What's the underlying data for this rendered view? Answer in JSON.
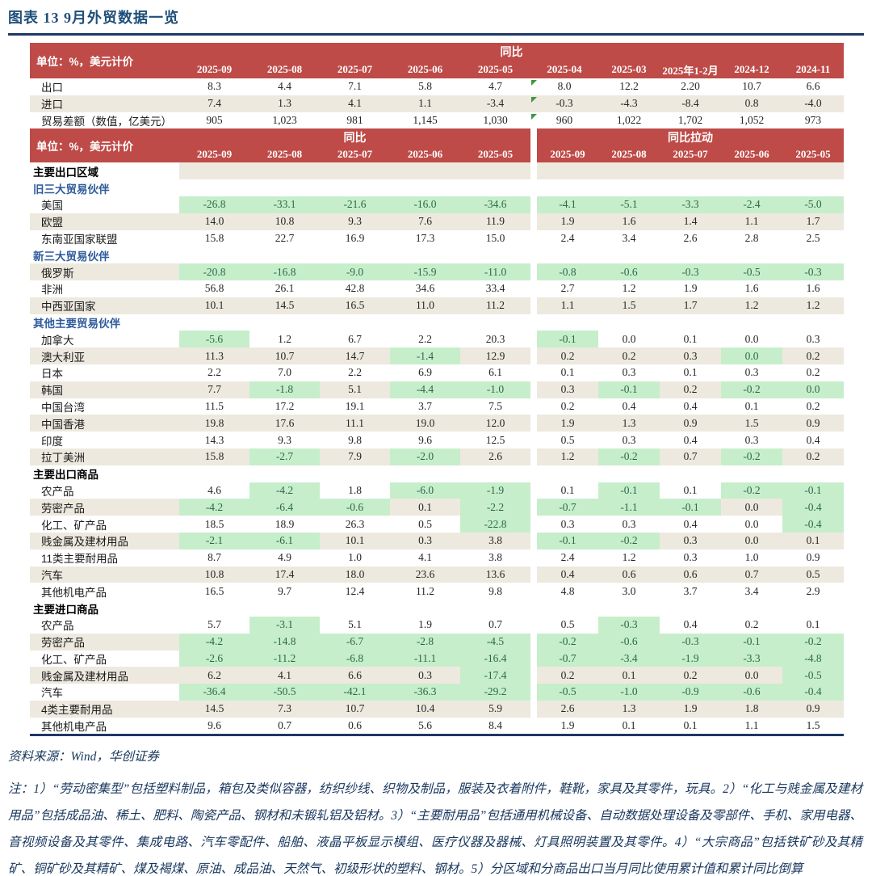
{
  "title": "图表 13  9月外贸数据一览",
  "colors": {
    "header_red": "#BE4B48",
    "stripe_beige": "#EDE9DF",
    "highlight_green_bg": "#C7EECB",
    "highlight_green_text": "#2B6A46",
    "section_blue": "#2E5B9C",
    "title_blue": "#1F4E79",
    "rule_navy": "#1F3864",
    "note_blue": "#17365D",
    "comment_marker_green": "#3F9643"
  },
  "table1": {
    "unit_label": "单位：%，美元计价",
    "group_label": "同比",
    "columns": [
      "2025-09",
      "2025-08",
      "2025-07",
      "2025-06",
      "2025-05",
      "2025-04",
      "2025-03",
      "2025年1-2月",
      "2024-12",
      "2024-11"
    ],
    "rows": [
      {
        "label": "出口",
        "stripe": false,
        "marker_col": 5,
        "values": [
          "8.3",
          "4.4",
          "7.1",
          "5.8",
          "4.7",
          "8.0",
          "12.2",
          "2.20",
          "10.7",
          "6.6"
        ]
      },
      {
        "label": "进口",
        "stripe": true,
        "marker_col": 5,
        "values": [
          "7.4",
          "1.3",
          "4.1",
          "1.1",
          "-3.4",
          "-0.3",
          "-4.3",
          "-8.4",
          "0.8",
          "-4.0"
        ]
      },
      {
        "label": "贸易差额（数值，亿美元）",
        "stripe": false,
        "marker_col": 5,
        "values": [
          "905",
          "1,023",
          "981",
          "1,145",
          "1,030",
          "960",
          "1,022",
          "1,702",
          "1,052",
          "973"
        ]
      }
    ]
  },
  "table2": {
    "unit_label": "单位：%，美元计价",
    "group_labels": [
      "同比",
      "同比拉动"
    ],
    "columns": [
      "2025-09",
      "2025-08",
      "2025-07",
      "2025-06",
      "2025-05",
      "2025-09",
      "2025-08",
      "2025-07",
      "2025-06",
      "2025-05"
    ],
    "rows": [
      {
        "label": "主要出口区域",
        "type": "section-black",
        "stripe": true
      },
      {
        "label": "旧三大贸易伙伴",
        "type": "section-blue",
        "stripe": false
      },
      {
        "label": "美国",
        "type": "item",
        "stripe": false,
        "values": [
          "-26.8",
          "-33.1",
          "-21.6",
          "-16.0",
          "-34.6",
          "-4.1",
          "-5.1",
          "-3.3",
          "-2.4",
          "-5.0"
        ]
      },
      {
        "label": "欧盟",
        "type": "item",
        "stripe": true,
        "values": [
          "14.0",
          "10.8",
          "9.3",
          "7.6",
          "11.9",
          "1.9",
          "1.6",
          "1.4",
          "1.1",
          "1.7"
        ]
      },
      {
        "label": "东南亚国家联盟",
        "type": "item",
        "stripe": false,
        "values": [
          "15.8",
          "22.7",
          "16.9",
          "17.3",
          "15.0",
          "2.4",
          "3.4",
          "2.6",
          "2.8",
          "2.5"
        ]
      },
      {
        "label": "新三大贸易伙伴",
        "type": "section-blue",
        "stripe": false
      },
      {
        "label": "俄罗斯",
        "type": "item",
        "stripe": true,
        "values": [
          "-20.8",
          "-16.8",
          "-9.0",
          "-15.9",
          "-11.0",
          "-0.8",
          "-0.6",
          "-0.3",
          "-0.5",
          "-0.3"
        ]
      },
      {
        "label": "非洲",
        "type": "item",
        "stripe": false,
        "values": [
          "56.8",
          "26.1",
          "42.8",
          "34.6",
          "33.4",
          "2.7",
          "1.2",
          "1.9",
          "1.6",
          "1.6"
        ]
      },
      {
        "label": "中西亚国家",
        "type": "item",
        "stripe": true,
        "values": [
          "10.1",
          "14.5",
          "16.5",
          "11.0",
          "11.2",
          "1.1",
          "1.5",
          "1.7",
          "1.2",
          "1.2"
        ]
      },
      {
        "label": "其他主要贸易伙伴",
        "type": "section-blue",
        "stripe": false
      },
      {
        "label": "加拿大",
        "type": "item",
        "stripe": false,
        "values": [
          "-5.6",
          "1.2",
          "6.7",
          "2.2",
          "20.3",
          "-0.1",
          "0.0",
          "0.1",
          "0.0",
          "0.3"
        ]
      },
      {
        "label": "澳大利亚",
        "type": "item",
        "stripe": true,
        "values": [
          "11.3",
          "10.7",
          "14.7",
          "-1.4",
          "12.9",
          "0.2",
          "0.2",
          "0.3",
          "0.0",
          "0.2"
        ],
        "extra_green": [
          8
        ]
      },
      {
        "label": "日本",
        "type": "item",
        "stripe": false,
        "values": [
          "2.2",
          "7.0",
          "2.2",
          "6.9",
          "6.1",
          "0.1",
          "0.3",
          "0.1",
          "0.3",
          "0.2"
        ]
      },
      {
        "label": "韩国",
        "type": "item",
        "stripe": true,
        "values": [
          "7.7",
          "-1.8",
          "5.1",
          "-4.4",
          "-1.0",
          "0.3",
          "-0.1",
          "0.2",
          "-0.2",
          "0.0"
        ],
        "extra_green": [
          9
        ]
      },
      {
        "label": "中国台湾",
        "type": "item",
        "stripe": false,
        "values": [
          "11.5",
          "17.2",
          "19.1",
          "3.7",
          "7.5",
          "0.2",
          "0.4",
          "0.4",
          "0.1",
          "0.2"
        ]
      },
      {
        "label": "中国香港",
        "type": "item",
        "stripe": true,
        "values": [
          "19.8",
          "17.6",
          "11.1",
          "19.0",
          "12.0",
          "1.9",
          "1.3",
          "0.9",
          "1.5",
          "0.9"
        ]
      },
      {
        "label": "印度",
        "type": "item",
        "stripe": false,
        "values": [
          "14.3",
          "9.3",
          "9.8",
          "9.6",
          "12.5",
          "0.5",
          "0.3",
          "0.4",
          "0.3",
          "0.4"
        ]
      },
      {
        "label": "拉丁美洲",
        "type": "item",
        "stripe": true,
        "values": [
          "15.8",
          "-2.7",
          "7.9",
          "-2.0",
          "2.6",
          "1.2",
          "-0.2",
          "0.7",
          "-0.2",
          "0.2"
        ]
      },
      {
        "label": "主要出口商品",
        "type": "section-black",
        "stripe": false
      },
      {
        "label": "农产品",
        "type": "item",
        "stripe": false,
        "values": [
          "4.6",
          "-4.2",
          "1.8",
          "-6.0",
          "-1.9",
          "0.1",
          "-0.1",
          "0.1",
          "-0.2",
          "-0.1"
        ]
      },
      {
        "label": "劳密产品",
        "type": "item",
        "stripe": true,
        "values": [
          "-4.2",
          "-6.4",
          "-0.6",
          "0.1",
          "-2.2",
          "-0.7",
          "-1.1",
          "-0.1",
          "0.0",
          "-0.4"
        ]
      },
      {
        "label": "化工、矿产品",
        "type": "item",
        "stripe": false,
        "values": [
          "18.5",
          "18.9",
          "26.3",
          "0.5",
          "-22.8",
          "0.3",
          "0.3",
          "0.4",
          "0.0",
          "-0.4"
        ]
      },
      {
        "label": "贱金属及建材用品",
        "type": "item",
        "stripe": true,
        "values": [
          "-2.1",
          "-6.1",
          "10.1",
          "0.3",
          "3.8",
          "-0.1",
          "-0.2",
          "0.3",
          "0.0",
          "0.1"
        ]
      },
      {
        "label": "11类主要耐用品",
        "type": "item",
        "stripe": false,
        "values": [
          "8.7",
          "4.9",
          "1.0",
          "4.1",
          "3.8",
          "2.4",
          "1.2",
          "0.3",
          "1.0",
          "0.9"
        ]
      },
      {
        "label": "汽车",
        "type": "item",
        "stripe": true,
        "values": [
          "10.8",
          "17.4",
          "18.0",
          "23.6",
          "13.6",
          "0.4",
          "0.6",
          "0.6",
          "0.7",
          "0.5"
        ]
      },
      {
        "label": "其他机电产品",
        "type": "item",
        "stripe": false,
        "values": [
          "16.5",
          "9.7",
          "12.4",
          "11.2",
          "9.8",
          "4.8",
          "3.0",
          "3.7",
          "3.4",
          "2.9"
        ]
      },
      {
        "label": "主要进口商品",
        "type": "section-black",
        "stripe": false
      },
      {
        "label": "农产品",
        "type": "item",
        "stripe": false,
        "values": [
          "5.7",
          "-3.1",
          "5.1",
          "1.9",
          "0.7",
          "0.5",
          "-0.3",
          "0.4",
          "0.2",
          "0.1"
        ]
      },
      {
        "label": "劳密产品",
        "type": "item",
        "stripe": true,
        "values": [
          "-4.2",
          "-14.8",
          "-6.7",
          "-2.8",
          "-4.5",
          "-0.2",
          "-0.6",
          "-0.3",
          "-0.1",
          "-0.2"
        ]
      },
      {
        "label": "化工、矿产品",
        "type": "item",
        "stripe": false,
        "values": [
          "-2.6",
          "-11.2",
          "-6.8",
          "-11.1",
          "-16.4",
          "-0.7",
          "-3.4",
          "-1.9",
          "-3.3",
          "-4.8"
        ]
      },
      {
        "label": "贱金属及建材用品",
        "type": "item",
        "stripe": true,
        "values": [
          "6.2",
          "4.1",
          "6.6",
          "0.3",
          "-17.4",
          "0.2",
          "0.1",
          "0.2",
          "0.0",
          "-0.5"
        ]
      },
      {
        "label": "汽车",
        "type": "item",
        "stripe": false,
        "values": [
          "-36.4",
          "-50.5",
          "-42.1",
          "-36.3",
          "-29.2",
          "-0.5",
          "-1.0",
          "-0.9",
          "-0.6",
          "-0.4"
        ]
      },
      {
        "label": "4类主要耐用品",
        "type": "item",
        "stripe": true,
        "values": [
          "14.5",
          "7.3",
          "10.7",
          "10.4",
          "5.9",
          "2.6",
          "1.3",
          "1.9",
          "1.8",
          "0.9"
        ]
      },
      {
        "label": "其他机电产品",
        "type": "item",
        "stripe": false,
        "values": [
          "9.6",
          "0.7",
          "0.6",
          "5.6",
          "8.4",
          "1.9",
          "0.1",
          "0.1",
          "1.1",
          "1.5"
        ]
      }
    ]
  },
  "footer": {
    "source": "资料来源：Wind，华创证券",
    "notes": "注：1）“劳动密集型”包括塑料制品，箱包及类似容器，纺织纱线、织物及制品，服装及衣着附件，鞋靴，家具及其零件，玩具。2）“化工与贱金属及建材用品”包括成品油、稀土、肥料、陶瓷产品、钢材和未锻轧铝及铝材。3）“主要耐用品”包括通用机械设备、自动数据处理设备及零部件、手机、家用电器、音视频设备及其零件、集成电路、汽车零配件、船舶、液晶平板显示模组、医疗仪器及器械、灯具照明装置及其零件。4）“大宗商品”包括铁矿砂及其精矿、铜矿砂及其精矿、煤及褐煤、原油、成品油、天然气、初级形状的塑料、钢材。5）分区域和分商品出口当月同比使用累计值和累计同比倒算"
  }
}
